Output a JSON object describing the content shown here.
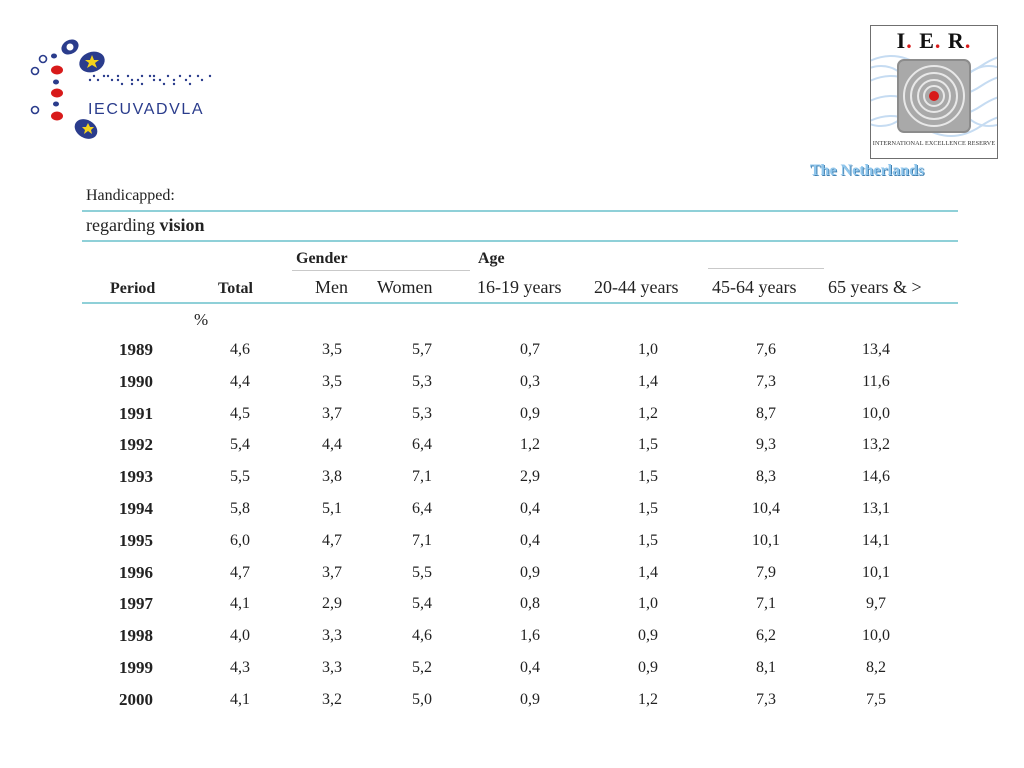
{
  "logos": {
    "left_text": "IECUVADVLA",
    "right_letters": [
      "I",
      "E",
      "R"
    ],
    "right_caption": "INTERNATIONAL EXCELLENCE RESERVE",
    "accent_colors": {
      "blue": "#2a3c8c",
      "red": "#d81a1a",
      "yellow": "#f3d21b",
      "ring_grey": "#9a9a9a"
    }
  },
  "country": "The Netherlands",
  "heading1": "Handicapped:",
  "heading2_prefix": "regarding ",
  "heading2_bold": "vision",
  "table": {
    "group_gender": "Gender",
    "group_age": "Age",
    "columns": [
      "Period",
      "Total",
      "Men",
      "Women",
      "16-19 years",
      "20-44 years",
      "45-64 years",
      "65 years & >"
    ],
    "unit": "%",
    "rows": [
      [
        "1989",
        "4,6",
        "3,5",
        "5,7",
        "0,7",
        "1,0",
        "7,6",
        "13,4"
      ],
      [
        "1990",
        "4,4",
        "3,5",
        "5,3",
        "0,3",
        "1,4",
        "7,3",
        "11,6"
      ],
      [
        "1991",
        "4,5",
        "3,7",
        "5,3",
        "0,9",
        "1,2",
        "8,7",
        "10,0"
      ],
      [
        "1992",
        "5,4",
        "4,4",
        "6,4",
        "1,2",
        "1,5",
        "9,3",
        "13,2"
      ],
      [
        "1993",
        "5,5",
        "3,8",
        "7,1",
        "2,9",
        "1,5",
        "8,3",
        "14,6"
      ],
      [
        "1994",
        "5,8",
        "5,1",
        "6,4",
        "0,4",
        "1,5",
        "10,4",
        "13,1"
      ],
      [
        "1995",
        "6,0",
        "4,7",
        "7,1",
        "0,4",
        "1,5",
        "10,1",
        "14,1"
      ],
      [
        "1996",
        "4,7",
        "3,7",
        "5,5",
        "0,9",
        "1,4",
        "7,9",
        "10,1"
      ],
      [
        "1997",
        "4,1",
        "2,9",
        "5,4",
        "0,8",
        "1,0",
        "7,1",
        "9,7"
      ],
      [
        "1998",
        "4,0",
        "3,3",
        "4,6",
        "1,6",
        "0,9",
        "6,2",
        "10,0"
      ],
      [
        "1999",
        "4,3",
        "3,3",
        "5,2",
        "0,4",
        "0,9",
        "8,1",
        "8,2"
      ],
      [
        "2000",
        "4,1",
        "3,2",
        "5,0",
        "0,9",
        "1,2",
        "7,3",
        "7,5"
      ]
    ]
  }
}
